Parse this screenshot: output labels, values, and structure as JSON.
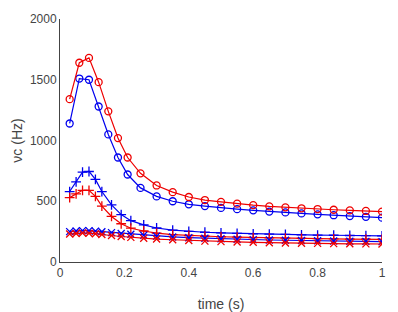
{
  "chart_data": {
    "type": "line",
    "xlabel": "time (s)",
    "ylabel": "νc (Hz)",
    "xlim": [
      0,
      1.0
    ],
    "ylim": [
      0,
      2000
    ],
    "xticks": [
      0.0,
      0.2,
      0.4,
      0.6,
      0.8,
      1.0
    ],
    "yticks": [
      0,
      500,
      1000,
      1500,
      2000
    ],
    "grid": false,
    "series": [
      {
        "color": "#0000EE",
        "marker": "circle",
        "x": [
          0.03,
          0.06,
          0.09,
          0.12,
          0.15,
          0.18,
          0.21,
          0.25,
          0.3,
          0.35,
          0.4,
          0.45,
          0.5,
          0.55,
          0.6,
          0.65,
          0.7,
          0.75,
          0.8,
          0.85,
          0.9,
          0.95,
          1.0
        ],
        "values": [
          1140,
          1510,
          1500,
          1280,
          1050,
          860,
          720,
          610,
          540,
          500,
          475,
          460,
          445,
          435,
          425,
          415,
          408,
          400,
          392,
          385,
          378,
          372,
          365
        ]
      },
      {
        "color": "#EE0000",
        "marker": "circle",
        "x": [
          0.03,
          0.06,
          0.09,
          0.12,
          0.15,
          0.18,
          0.21,
          0.25,
          0.3,
          0.35,
          0.4,
          0.45,
          0.5,
          0.55,
          0.6,
          0.65,
          0.7,
          0.75,
          0.8,
          0.85,
          0.9,
          0.95,
          1.0
        ],
        "values": [
          1340,
          1640,
          1680,
          1480,
          1240,
          1020,
          860,
          730,
          630,
          575,
          535,
          510,
          495,
          480,
          468,
          458,
          450,
          442,
          436,
          430,
          425,
          420,
          415
        ]
      },
      {
        "color": "#0000EE",
        "marker": "plus",
        "x": [
          0.03,
          0.05,
          0.07,
          0.09,
          0.11,
          0.13,
          0.16,
          0.19,
          0.22,
          0.26,
          0.3,
          0.35,
          0.4,
          0.45,
          0.5,
          0.55,
          0.6,
          0.65,
          0.7,
          0.75,
          0.8,
          0.85,
          0.9,
          0.95,
          1.0
        ],
        "values": [
          580,
          660,
          740,
          745,
          680,
          580,
          470,
          390,
          340,
          305,
          280,
          262,
          252,
          245,
          240,
          236,
          232,
          229,
          227,
          224,
          222,
          220,
          218,
          217,
          215
        ]
      },
      {
        "color": "#EE0000",
        "marker": "plus",
        "x": [
          0.03,
          0.05,
          0.07,
          0.09,
          0.11,
          0.13,
          0.16,
          0.19,
          0.22,
          0.26,
          0.3,
          0.35,
          0.4,
          0.45,
          0.5,
          0.55,
          0.6,
          0.65,
          0.7,
          0.75,
          0.8,
          0.85,
          0.9,
          0.95,
          1.0
        ],
        "values": [
          530,
          560,
          590,
          590,
          540,
          460,
          375,
          315,
          278,
          255,
          238,
          225,
          218,
          212,
          208,
          204,
          201,
          198,
          196,
          194,
          192,
          190,
          189,
          188,
          187
        ]
      },
      {
        "color": "#0000EE",
        "marker": "x",
        "x": [
          0.03,
          0.05,
          0.07,
          0.09,
          0.11,
          0.13,
          0.16,
          0.19,
          0.22,
          0.26,
          0.3,
          0.35,
          0.4,
          0.45,
          0.5,
          0.55,
          0.6,
          0.65,
          0.7,
          0.75,
          0.8,
          0.85,
          0.9,
          0.95,
          1.0
        ],
        "values": [
          250,
          255,
          258,
          258,
          254,
          249,
          242,
          235,
          228,
          220,
          213,
          206,
          200,
          195,
          191,
          187,
          184,
          181,
          179,
          177,
          175,
          173,
          171,
          170,
          168
        ]
      },
      {
        "color": "#EE0000",
        "marker": "x",
        "x": [
          0.03,
          0.05,
          0.07,
          0.09,
          0.11,
          0.13,
          0.16,
          0.19,
          0.22,
          0.26,
          0.3,
          0.35,
          0.4,
          0.45,
          0.5,
          0.55,
          0.6,
          0.65,
          0.7,
          0.75,
          0.8,
          0.85,
          0.9,
          0.95,
          1.0
        ],
        "values": [
          230,
          235,
          238,
          237,
          233,
          226,
          218,
          210,
          203,
          196,
          189,
          183,
          177,
          172,
          168,
          165,
          162,
          159,
          157,
          155,
          153,
          151,
          150,
          149,
          148
        ]
      }
    ]
  }
}
